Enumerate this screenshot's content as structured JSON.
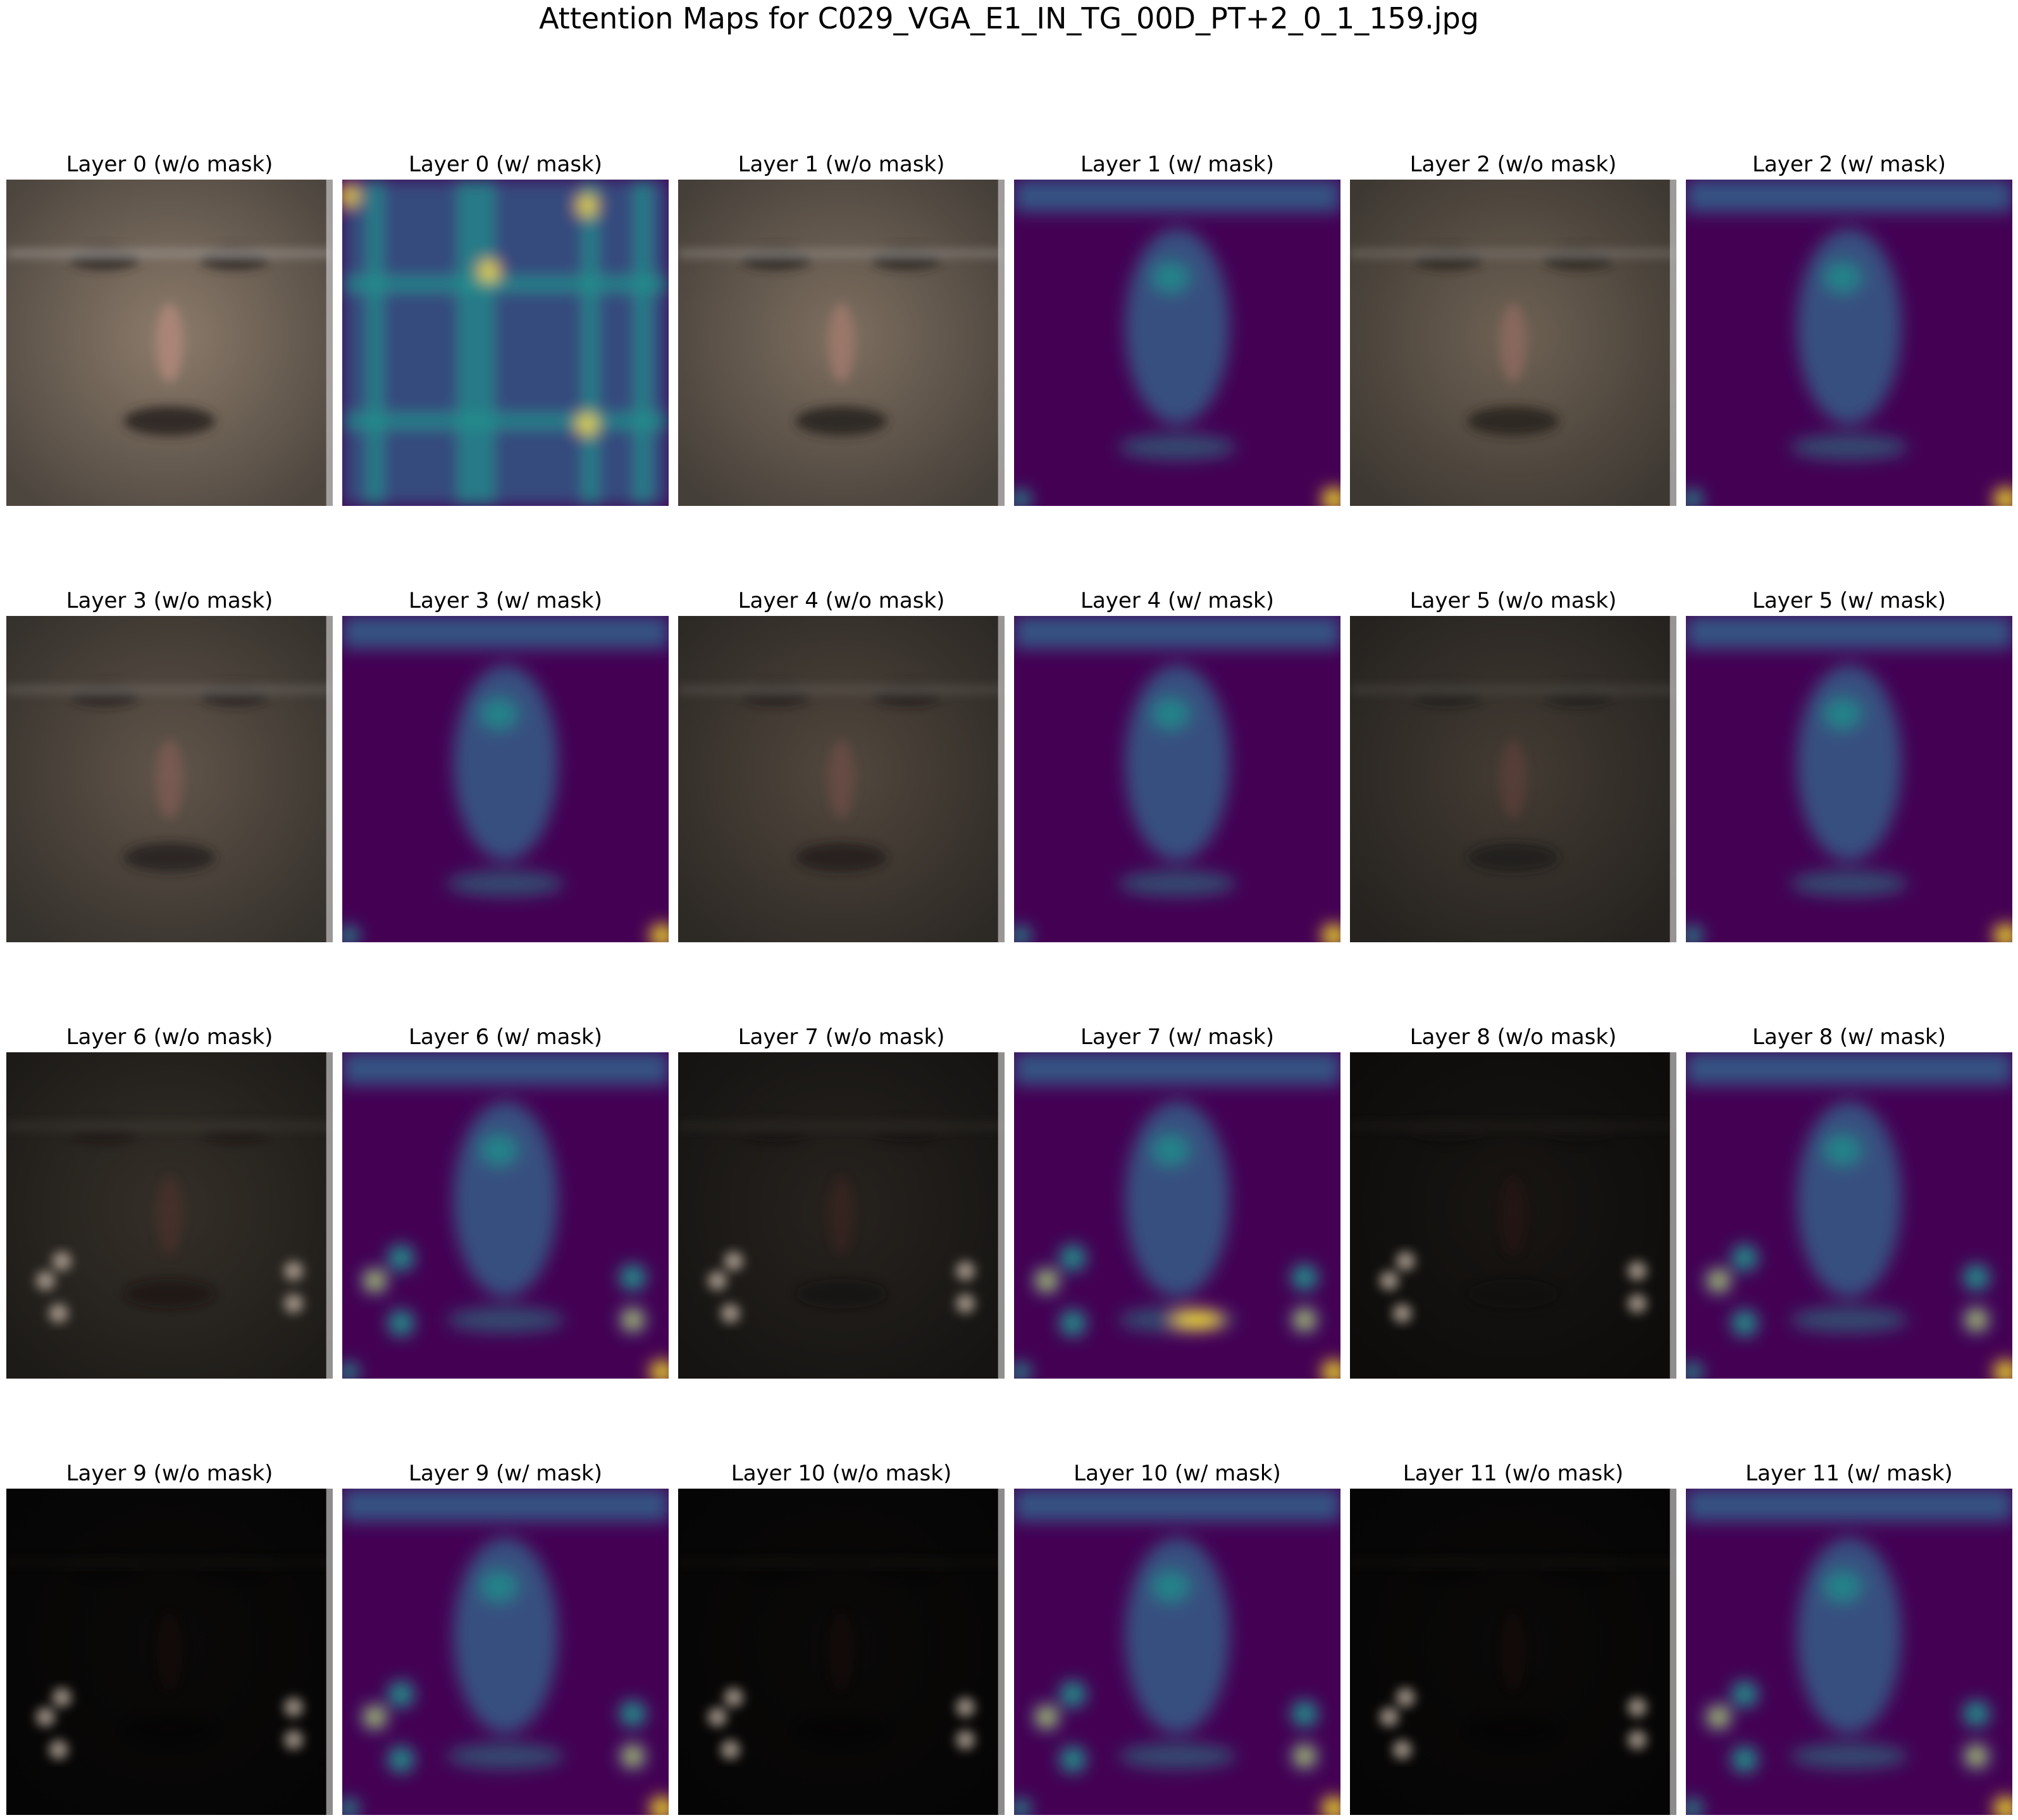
{
  "title": "Attention Maps for C029_VGA_E1_IN_TG_00D_PT+2_0_1_159.jpg",
  "panels": [
    {
      "label": "Layer 0 (w/o mask)",
      "kind": "face",
      "layer": 0
    },
    {
      "label": "Layer 0 (w/ mask)",
      "kind": "heatmap",
      "layer": 0
    },
    {
      "label": "Layer 1 (w/o mask)",
      "kind": "face",
      "layer": 1
    },
    {
      "label": "Layer 1 (w/ mask)",
      "kind": "heatmap",
      "layer": 1
    },
    {
      "label": "Layer 2 (w/o mask)",
      "kind": "face",
      "layer": 2
    },
    {
      "label": "Layer 2 (w/ mask)",
      "kind": "heatmap",
      "layer": 2
    },
    {
      "label": "Layer 3 (w/o mask)",
      "kind": "face",
      "layer": 3
    },
    {
      "label": "Layer 3 (w/ mask)",
      "kind": "heatmap",
      "layer": 3
    },
    {
      "label": "Layer 4 (w/o mask)",
      "kind": "face",
      "layer": 4
    },
    {
      "label": "Layer 4 (w/ mask)",
      "kind": "heatmap",
      "layer": 4
    },
    {
      "label": "Layer 5 (w/o mask)",
      "kind": "face",
      "layer": 5
    },
    {
      "label": "Layer 5 (w/ mask)",
      "kind": "heatmap",
      "layer": 5
    },
    {
      "label": "Layer 6 (w/o mask)",
      "kind": "face",
      "layer": 6
    },
    {
      "label": "Layer 6 (w/ mask)",
      "kind": "heatmap",
      "layer": 6
    },
    {
      "label": "Layer 7 (w/o mask)",
      "kind": "face",
      "layer": 7
    },
    {
      "label": "Layer 7 (w/ mask)",
      "kind": "heatmap",
      "layer": 7
    },
    {
      "label": "Layer 8 (w/o mask)",
      "kind": "face",
      "layer": 8
    },
    {
      "label": "Layer 8 (w/ mask)",
      "kind": "heatmap",
      "layer": 8
    },
    {
      "label": "Layer 9 (w/o mask)",
      "kind": "face",
      "layer": 9
    },
    {
      "label": "Layer 9 (w/ mask)",
      "kind": "heatmap",
      "layer": 9
    },
    {
      "label": "Layer 10 (w/o mask)",
      "kind": "face",
      "layer": 10
    },
    {
      "label": "Layer 10 (w/ mask)",
      "kind": "heatmap",
      "layer": 10
    },
    {
      "label": "Layer 11 (w/o mask)",
      "kind": "face",
      "layer": 11
    },
    {
      "label": "Layer 11 (w/ mask)",
      "kind": "heatmap",
      "layer": 11
    }
  ],
  "colors": {
    "viridis_low": "#440154",
    "viridis_mid": "#31688e",
    "viridis_teal": "#21918c",
    "viridis_high": "#fde725",
    "face_skin": "#8a7a6a",
    "background": "#ffffff"
  }
}
